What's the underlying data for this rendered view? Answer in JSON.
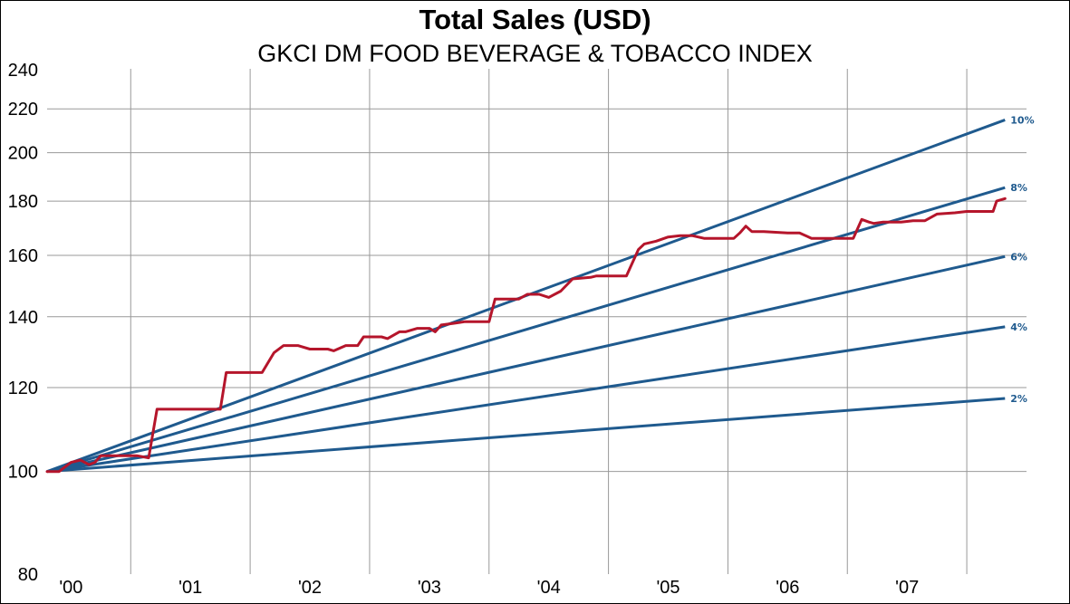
{
  "chart_data": {
    "type": "line",
    "title": "Total Sales (USD)",
    "subtitle": "GKCI DM FOOD BEVERAGE & TOBACCO INDEX",
    "y_scale": "log",
    "ylim": [
      80,
      240
    ],
    "y_ticks": [
      80,
      100,
      120,
      140,
      160,
      180,
      200,
      220,
      240
    ],
    "x_ticks": [
      "'00",
      "'01",
      "'02",
      "'03",
      "'04",
      "'05",
      "'06",
      "'07"
    ],
    "xlim": [
      1999.8,
      2008.0
    ],
    "grid": true,
    "colors": {
      "index": "#b5152b",
      "reference": "#1f5a8e",
      "grid": "#999999"
    },
    "reference_lines": [
      {
        "label": "10%",
        "rate": 0.1,
        "start": 1999.8,
        "end": 2007.82,
        "start_value": 100
      },
      {
        "label": "8%",
        "rate": 0.08,
        "start": 1999.8,
        "end": 2007.82,
        "start_value": 100
      },
      {
        "label": "6%",
        "rate": 0.06,
        "start": 1999.8,
        "end": 2007.82,
        "start_value": 100
      },
      {
        "label": "4%",
        "rate": 0.04,
        "start": 1999.8,
        "end": 2007.82,
        "start_value": 100
      },
      {
        "label": "2%",
        "rate": 0.02,
        "start": 1999.8,
        "end": 2007.82,
        "start_value": 100
      }
    ],
    "series": [
      {
        "x": [
          1999.8,
          1999.9,
          2000.0,
          2000.08,
          2000.15,
          2000.2,
          2000.25,
          2000.3,
          2000.38,
          2000.45,
          2000.55,
          2000.65,
          2000.72,
          2000.76,
          2000.85,
          2001.0,
          2001.25,
          2001.3,
          2001.6,
          2001.7,
          2001.78,
          2001.9,
          2002.0,
          2002.15,
          2002.2,
          2002.3,
          2002.4,
          2002.45,
          2002.6,
          2002.65,
          2002.75,
          2002.8,
          2002.9,
          2003.0,
          2003.05,
          2003.1,
          2003.2,
          2003.3,
          2003.4,
          2003.5,
          2003.55,
          2003.62,
          2003.75,
          2003.82,
          2003.92,
          2004.0,
          2004.1,
          2004.2,
          2004.35,
          2004.4,
          2004.48,
          2004.55,
          2004.65,
          2004.75,
          2004.8,
          2004.9,
          2005.0,
          2005.1,
          2005.2,
          2005.3,
          2005.45,
          2005.55,
          2005.6,
          2005.65,
          2005.7,
          2005.8,
          2006.0,
          2006.1,
          2006.2,
          2006.3,
          2006.45,
          2006.55,
          2006.62,
          2006.68,
          2006.72,
          2006.8,
          2006.95,
          2007.05,
          2007.15,
          2007.25,
          2007.4,
          2007.5,
          2007.65,
          2007.72,
          2007.75,
          2007.82
        ],
        "values": [
          100,
          100,
          102,
          102.5,
          101.5,
          102,
          103.5,
          103.5,
          103.5,
          103.5,
          103.5,
          103,
          114.5,
          114.5,
          114.5,
          114.5,
          114.5,
          124,
          124,
          129.5,
          131.5,
          131.5,
          130.5,
          130.5,
          130,
          131.5,
          131.5,
          134,
          134,
          133.5,
          135.5,
          135.5,
          136.5,
          136.5,
          135.5,
          137.5,
          138,
          138.5,
          138.5,
          138.5,
          145.5,
          145.5,
          145.5,
          147,
          147,
          146,
          148,
          152,
          152.5,
          153,
          153,
          153,
          153,
          162,
          164,
          165,
          166.5,
          167,
          167,
          166,
          166,
          166,
          168,
          170.5,
          168.5,
          168.5,
          168,
          168,
          166,
          166,
          166,
          166,
          173,
          172,
          171.5,
          172,
          172,
          172.5,
          172.5,
          175,
          175.5,
          176,
          176,
          176,
          180,
          181
        ]
      }
    ]
  }
}
